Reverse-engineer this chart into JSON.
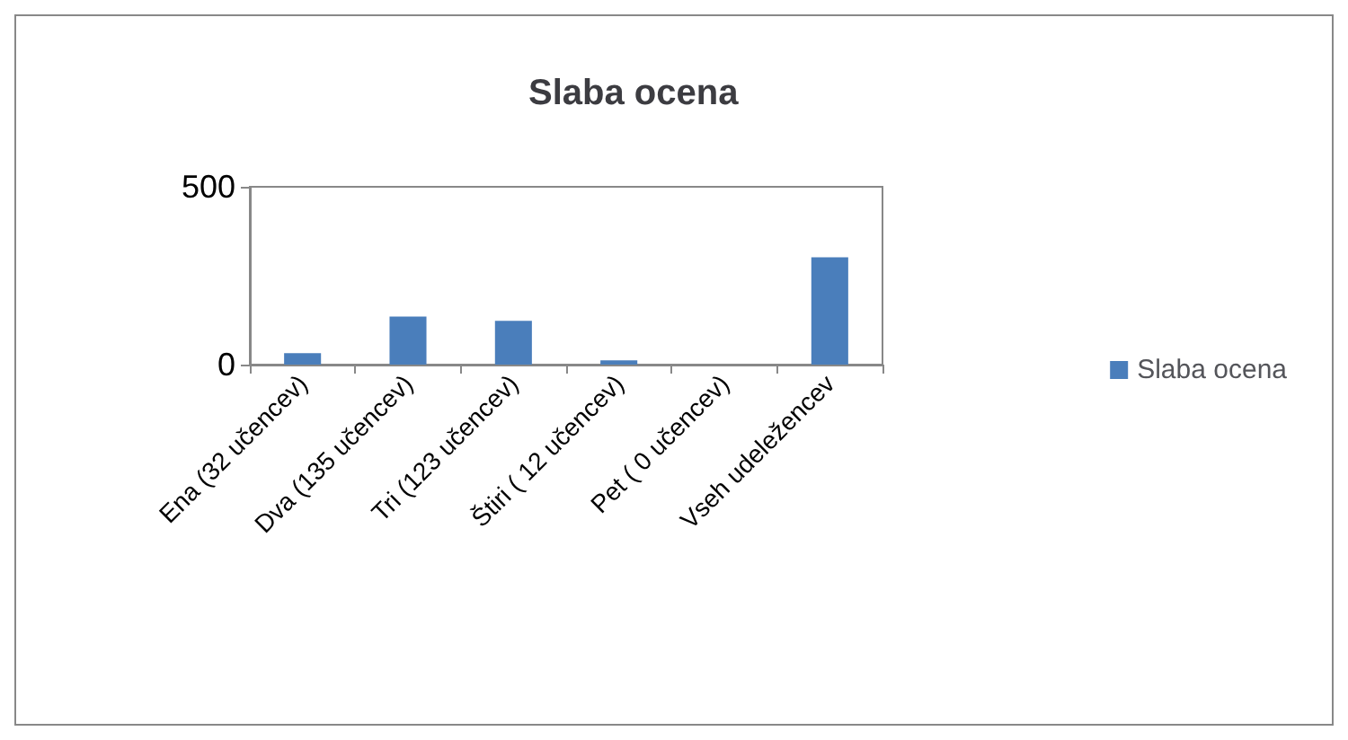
{
  "chart_data": {
    "type": "bar",
    "title": "Slaba ocena",
    "categories": [
      "Ena (32 učencev)",
      "Dva (135 učencev)",
      "Tri (123 učencev)",
      "Štiri ( 12 učencev)",
      "Pet ( 0 učencev)",
      "Vseh udeležencev"
    ],
    "series": [
      {
        "name": "Slaba ocena",
        "color": "#4a7ebb",
        "values": [
          32,
          135,
          123,
          12,
          0,
          302
        ]
      }
    ],
    "ylim": [
      0,
      500
    ],
    "yticks": [
      0,
      500
    ],
    "legend": "right"
  }
}
